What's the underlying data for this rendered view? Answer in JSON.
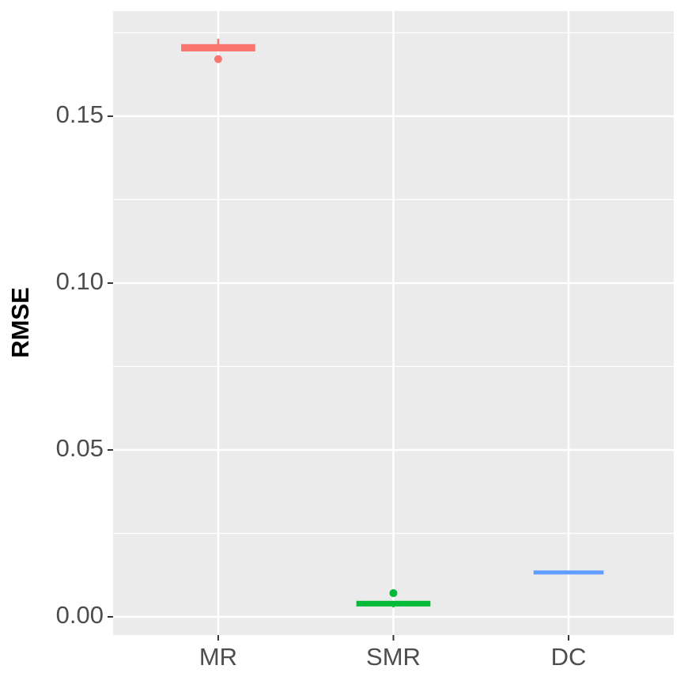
{
  "chart_data": {
    "type": "boxplot",
    "y_label": "RMSE",
    "categories": [
      "MR",
      "SMR",
      "DC"
    ],
    "series": [
      {
        "color": "#F8766D",
        "min": 0.17,
        "q1": 0.17,
        "median": 0.1705,
        "q3": 0.171,
        "max": 0.1732,
        "outliers": [
          0.1671
        ]
      },
      {
        "color": "#00BA38",
        "min": 0.0028,
        "q1": 0.0037,
        "median": 0.004,
        "q3": 0.0042,
        "max": 0.0042,
        "outliers": [
          0.0071
        ]
      },
      {
        "color": "#619CFF",
        "min": 0.0133,
        "q1": 0.0133,
        "median": 0.0133,
        "q3": 0.0133,
        "max": 0.0133,
        "outliers": []
      }
    ],
    "ylim": [
      -0.00545,
      0.1815
    ],
    "yticks": [
      {
        "value": 0,
        "label": "0.00"
      },
      {
        "value": 0.05,
        "label": "0.05"
      },
      {
        "value": 0.1,
        "label": "0.10"
      },
      {
        "value": 0.15,
        "label": "0.15"
      }
    ],
    "y_minor_grid": [
      0.025,
      0.075,
      0.125,
      0.175
    ],
    "grid": true
  }
}
